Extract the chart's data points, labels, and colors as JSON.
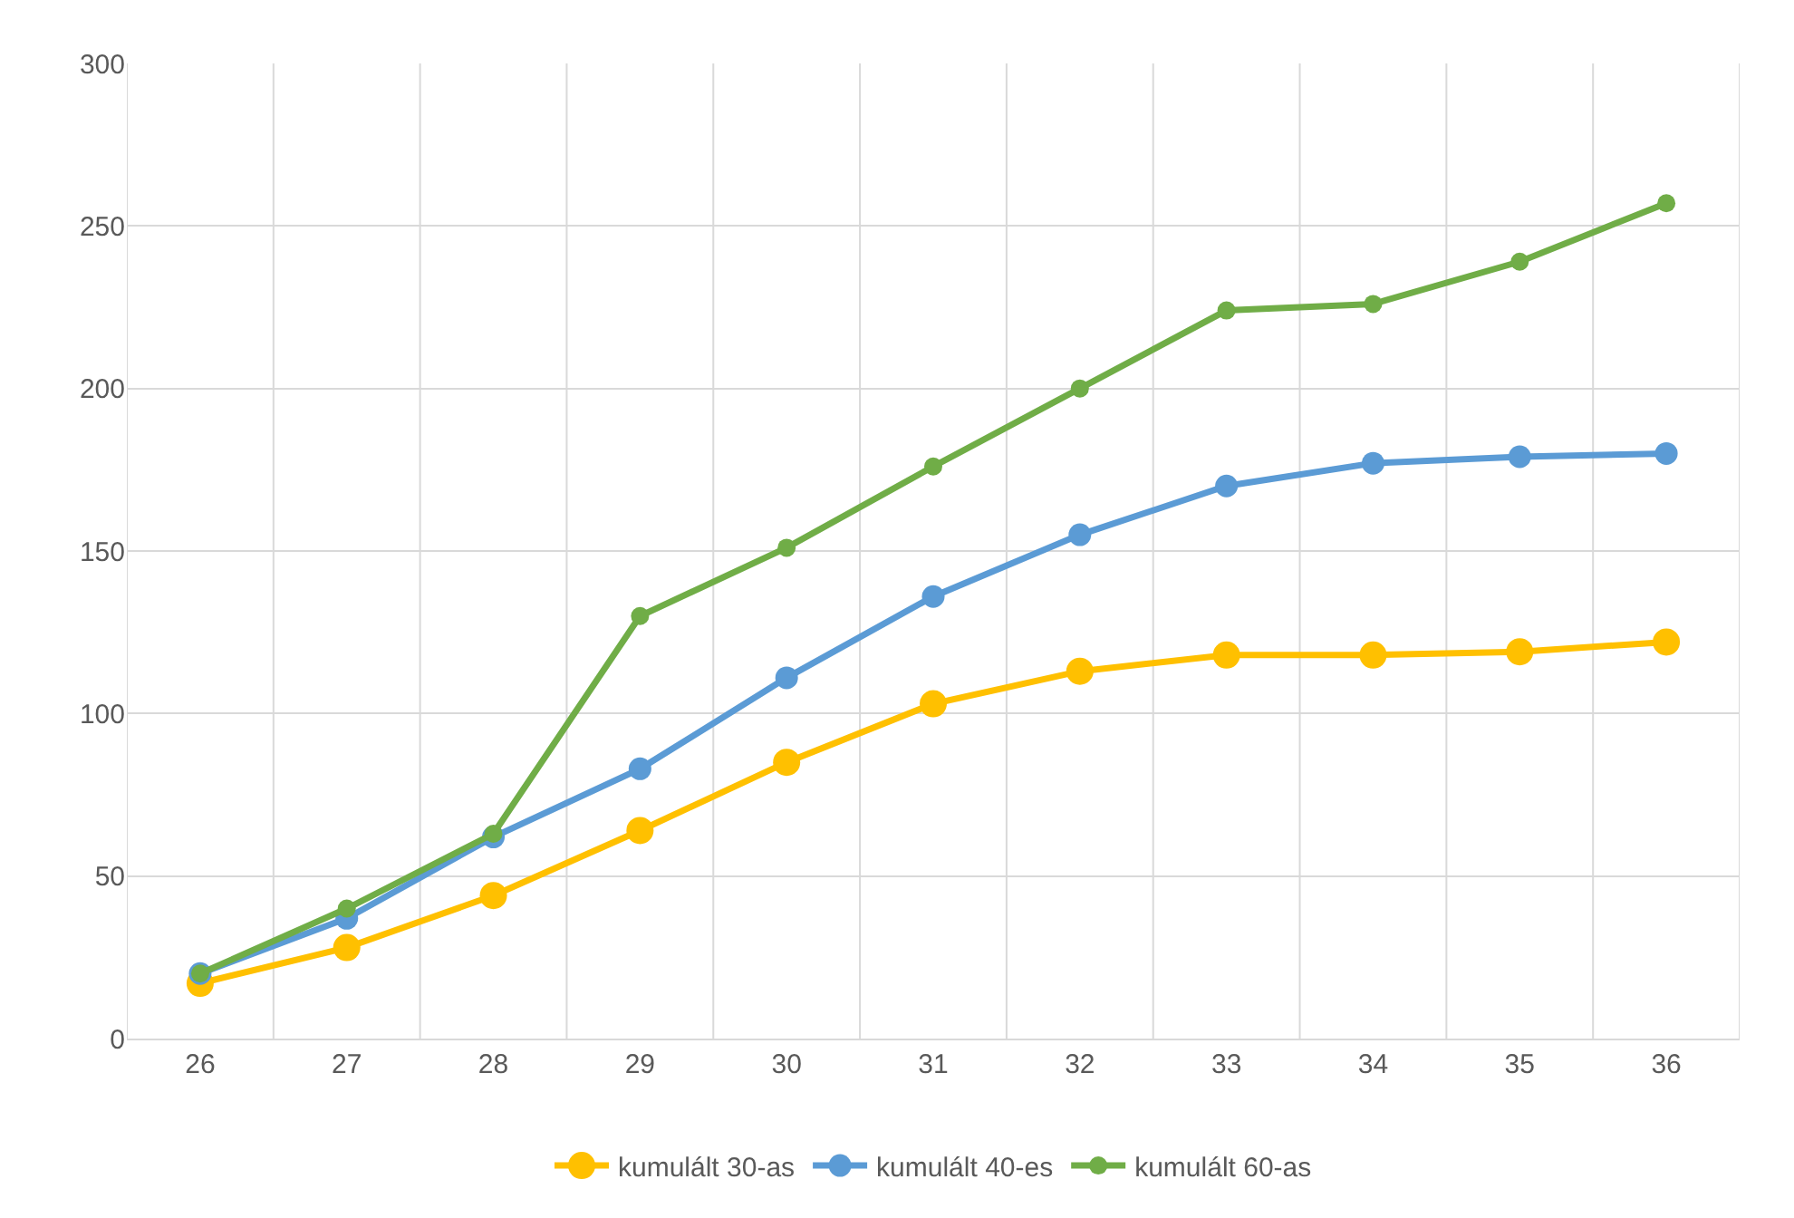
{
  "chart_data": {
    "type": "line",
    "categories": [
      "26",
      "27",
      "28",
      "29",
      "30",
      "31",
      "32",
      "33",
      "34",
      "35",
      "36"
    ],
    "series": [
      {
        "name": "kumulált 30-as",
        "color": "#ffc000",
        "values": [
          17,
          28,
          44,
          64,
          85,
          103,
          113,
          118,
          118,
          119,
          122
        ]
      },
      {
        "name": "kumulált 40-es",
        "color": "#5b9bd5",
        "values": [
          20,
          37,
          62,
          83,
          111,
          136,
          155,
          170,
          177,
          179,
          180
        ]
      },
      {
        "name": "kumulált 60-as",
        "color": "#70ad47",
        "values": [
          20,
          40,
          63,
          130,
          151,
          176,
          200,
          224,
          226,
          239,
          257
        ]
      }
    ],
    "ylim": [
      0,
      300
    ],
    "yticks": [
      0,
      50,
      100,
      150,
      200,
      250,
      300
    ],
    "grid": true,
    "legend": "bottom",
    "marker": "circle",
    "line_style": "solid"
  }
}
